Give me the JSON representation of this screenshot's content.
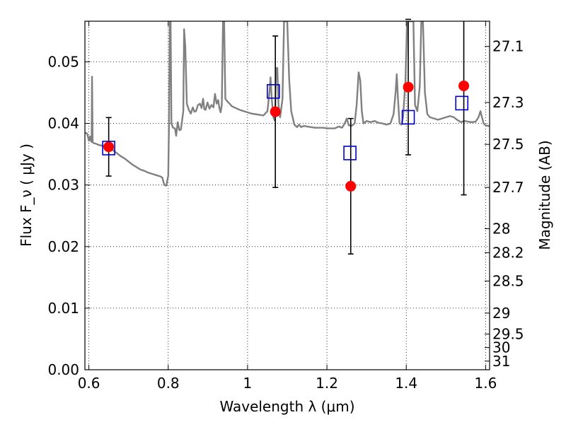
{
  "chart_data": {
    "type": "scatter",
    "title": "",
    "xlabel": "Wavelength  λ (μm)",
    "ylabel": "Flux  F_ν  ( μJy )",
    "ylabel_right": "Magnitude (AB)",
    "xlim": [
      0.59,
      1.61
    ],
    "ylim": [
      0.0,
      0.0566
    ],
    "xticks": [
      "0.6",
      "0.8",
      "1",
      "1.2",
      "1.4",
      "1.6"
    ],
    "xtick_values": [
      0.6,
      0.8,
      1.0,
      1.2,
      1.4,
      1.6
    ],
    "yticks": [
      "0.00",
      "0.01",
      "0.02",
      "0.03",
      "0.04",
      "0.05"
    ],
    "ytick_values": [
      0.0,
      0.01,
      0.02,
      0.03,
      0.04,
      0.05
    ],
    "right_ticks": [
      {
        "label": "27.1",
        "flux": 0.0525
      },
      {
        "label": "27.3",
        "flux": 0.0434
      },
      {
        "label": "27.5",
        "flux": 0.0366
      },
      {
        "label": "27.7",
        "flux": 0.0296
      },
      {
        "label": "28",
        "flux": 0.0229
      },
      {
        "label": "28.2",
        "flux": 0.019
      },
      {
        "label": "28.5",
        "flux": 0.0144
      },
      {
        "label": "29",
        "flux": 0.0092
      },
      {
        "label": "29.5",
        "flux": 0.0058
      },
      {
        "label": "30",
        "flux": 0.0036
      },
      {
        "label": "31",
        "flux": 0.0014
      }
    ],
    "grid": true,
    "colors": {
      "model": "#808080",
      "observed": "#ff0000",
      "synthetic": "#0000cc",
      "errorbar": "#000000",
      "grid": "#000000"
    },
    "series": [
      {
        "kind": "line",
        "points": [
          [
            0.59,
            0.0385
          ],
          [
            0.595,
            0.0384
          ],
          [
            0.598,
            0.0378
          ],
          [
            0.6,
            0.0372
          ],
          [
            0.603,
            0.0379
          ],
          [
            0.605,
            0.0372
          ],
          [
            0.607,
            0.037
          ],
          [
            0.608,
            0.0476
          ],
          [
            0.6095,
            0.037
          ],
          [
            0.612,
            0.0368
          ],
          [
            0.618,
            0.0367
          ],
          [
            0.625,
            0.0365
          ],
          [
            0.632,
            0.0364
          ],
          [
            0.64,
            0.0362
          ],
          [
            0.65,
            0.036
          ],
          [
            0.66,
            0.0357
          ],
          [
            0.67,
            0.0352
          ],
          [
            0.68,
            0.0347
          ],
          [
            0.69,
            0.0343
          ],
          [
            0.7,
            0.0338
          ],
          [
            0.71,
            0.0333
          ],
          [
            0.72,
            0.0329
          ],
          [
            0.73,
            0.0325
          ],
          [
            0.74,
            0.0323
          ],
          [
            0.75,
            0.032
          ],
          [
            0.76,
            0.0318
          ],
          [
            0.77,
            0.0316
          ],
          [
            0.78,
            0.0314
          ],
          [
            0.785,
            0.0312
          ],
          [
            0.79,
            0.03
          ],
          [
            0.795,
            0.0299
          ],
          [
            0.8,
            0.0315
          ],
          [
            0.802,
            0.04
          ],
          [
            0.804,
            0.0566
          ],
          [
            0.806,
            0.0566
          ],
          [
            0.808,
            0.04
          ],
          [
            0.812,
            0.0393
          ],
          [
            0.817,
            0.0392
          ],
          [
            0.82,
            0.038
          ],
          [
            0.824,
            0.0402
          ],
          [
            0.828,
            0.0389
          ],
          [
            0.832,
            0.039
          ],
          [
            0.838,
            0.042
          ],
          [
            0.84,
            0.0553
          ],
          [
            0.843,
            0.0525
          ],
          [
            0.847,
            0.0432
          ],
          [
            0.852,
            0.0422
          ],
          [
            0.857,
            0.0416
          ],
          [
            0.862,
            0.0426
          ],
          [
            0.866,
            0.0419
          ],
          [
            0.87,
            0.042
          ],
          [
            0.875,
            0.043
          ],
          [
            0.88,
            0.0432
          ],
          [
            0.884,
            0.0425
          ],
          [
            0.888,
            0.044
          ],
          [
            0.891,
            0.0423
          ],
          [
            0.894,
            0.0422
          ],
          [
            0.899,
            0.0434
          ],
          [
            0.904,
            0.0424
          ],
          [
            0.909,
            0.043
          ],
          [
            0.914,
            0.0426
          ],
          [
            0.918,
            0.0448
          ],
          [
            0.922,
            0.0432
          ],
          [
            0.926,
            0.0438
          ],
          [
            0.929,
            0.0425
          ],
          [
            0.932,
            0.0418
          ],
          [
            0.935,
            0.043
          ],
          [
            0.938,
            0.0566
          ],
          [
            0.941,
            0.0566
          ],
          [
            0.944,
            0.044
          ],
          [
            0.95,
            0.0435
          ],
          [
            0.955,
            0.0432
          ],
          [
            0.96,
            0.0428
          ],
          [
            0.97,
            0.0425
          ],
          [
            0.98,
            0.0422
          ],
          [
            0.99,
            0.042
          ],
          [
            1.0,
            0.0418
          ],
          [
            1.01,
            0.0416
          ],
          [
            1.02,
            0.0415
          ],
          [
            1.03,
            0.0414
          ],
          [
            1.04,
            0.0413
          ],
          [
            1.05,
            0.042
          ],
          [
            1.055,
            0.045
          ],
          [
            1.058,
            0.0475
          ],
          [
            1.061,
            0.044
          ],
          [
            1.065,
            0.041
          ],
          [
            1.068,
            0.0405
          ],
          [
            1.07,
            0.0425
          ],
          [
            1.072,
            0.049
          ],
          [
            1.075,
            0.049
          ],
          [
            1.078,
            0.043
          ],
          [
            1.082,
            0.041
          ],
          [
            1.088,
            0.044
          ],
          [
            1.092,
            0.0566
          ],
          [
            1.1,
            0.0566
          ],
          [
            1.105,
            0.047
          ],
          [
            1.11,
            0.042
          ],
          [
            1.118,
            0.0398
          ],
          [
            1.125,
            0.0394
          ],
          [
            1.13,
            0.0398
          ],
          [
            1.135,
            0.0394
          ],
          [
            1.142,
            0.0396
          ],
          [
            1.15,
            0.0395
          ],
          [
            1.16,
            0.0394
          ],
          [
            1.17,
            0.0393
          ],
          [
            1.18,
            0.0393
          ],
          [
            1.19,
            0.0393
          ],
          [
            1.2,
            0.0392
          ],
          [
            1.21,
            0.0392
          ],
          [
            1.22,
            0.0392
          ],
          [
            1.23,
            0.0395
          ],
          [
            1.238,
            0.0393
          ],
          [
            1.245,
            0.04
          ],
          [
            1.25,
            0.0408
          ],
          [
            1.255,
            0.0397
          ],
          [
            1.262,
            0.0396
          ],
          [
            1.27,
            0.04
          ],
          [
            1.275,
            0.043
          ],
          [
            1.28,
            0.0483
          ],
          [
            1.284,
            0.047
          ],
          [
            1.288,
            0.042
          ],
          [
            1.292,
            0.04
          ],
          [
            1.3,
            0.0404
          ],
          [
            1.31,
            0.0402
          ],
          [
            1.32,
            0.0404
          ],
          [
            1.33,
            0.0401
          ],
          [
            1.34,
            0.04
          ],
          [
            1.35,
            0.0398
          ],
          [
            1.36,
            0.04
          ],
          [
            1.368,
            0.0415
          ],
          [
            1.373,
            0.045
          ],
          [
            1.376,
            0.048
          ],
          [
            1.379,
            0.044
          ],
          [
            1.383,
            0.04
          ],
          [
            1.388,
            0.0398
          ],
          [
            1.392,
            0.041
          ],
          [
            1.398,
            0.047
          ],
          [
            1.402,
            0.0566
          ],
          [
            1.41,
            0.0566
          ],
          [
            1.418,
            0.0566
          ],
          [
            1.422,
            0.043
          ],
          [
            1.428,
            0.042
          ],
          [
            1.434,
            0.046
          ],
          [
            1.438,
            0.0566
          ],
          [
            1.442,
            0.0566
          ],
          [
            1.447,
            0.045
          ],
          [
            1.453,
            0.0415
          ],
          [
            1.46,
            0.041
          ],
          [
            1.47,
            0.0408
          ],
          [
            1.48,
            0.0406
          ],
          [
            1.49,
            0.0408
          ],
          [
            1.5,
            0.041
          ],
          [
            1.51,
            0.0412
          ],
          [
            1.52,
            0.041
          ],
          [
            1.53,
            0.0405
          ],
          [
            1.538,
            0.0402
          ],
          [
            1.546,
            0.0404
          ],
          [
            1.555,
            0.0403
          ],
          [
            1.565,
            0.0402
          ],
          [
            1.575,
            0.0403
          ],
          [
            1.582,
            0.041
          ],
          [
            1.587,
            0.042
          ],
          [
            1.59,
            0.0412
          ],
          [
            1.595,
            0.04
          ],
          [
            1.6,
            0.0397
          ],
          [
            1.605,
            0.0396
          ],
          [
            1.61,
            0.0396
          ]
        ]
      },
      {
        "kind": "points",
        "marker": "filled-circle",
        "points": [
          {
            "x": 0.65,
            "y": 0.0362,
            "err": 0.00475
          },
          {
            "x": 1.07,
            "y": 0.0419,
            "err": 0.0123
          },
          {
            "x": 1.26,
            "y": 0.0298,
            "err": 0.011
          },
          {
            "x": 1.405,
            "y": 0.0459,
            "err": 0.011
          },
          {
            "x": 1.545,
            "y": 0.0461,
            "err": 0.0177
          }
        ]
      },
      {
        "kind": "points",
        "marker": "open-square",
        "points": [
          {
            "x": 0.65,
            "y": 0.036
          },
          {
            "x": 1.065,
            "y": 0.0452
          },
          {
            "x": 1.258,
            "y": 0.0352
          },
          {
            "x": 1.405,
            "y": 0.041
          },
          {
            "x": 1.54,
            "y": 0.0433
          }
        ]
      }
    ]
  }
}
